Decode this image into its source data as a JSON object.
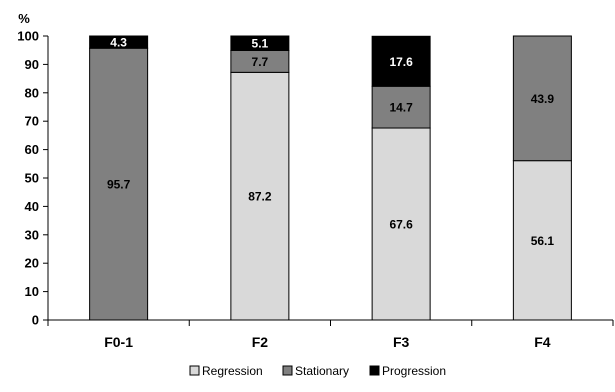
{
  "chart_data": {
    "type": "bar",
    "stacked": true,
    "y_unit": "%",
    "ylim": [
      0,
      100
    ],
    "yticks": [
      0,
      10,
      20,
      30,
      40,
      50,
      60,
      70,
      80,
      90,
      100
    ],
    "grid": false,
    "legend_position": "bottom",
    "categories": [
      "F0-1",
      "F2",
      "F3",
      "F4"
    ],
    "series": [
      {
        "name": "Regression",
        "color": "#d9d9d9",
        "label_color": "#000000",
        "values": [
          0,
          87.2,
          67.6,
          56.1
        ],
        "labels": [
          "",
          "87.2",
          "67.6",
          "56.1"
        ]
      },
      {
        "name": "Stationary",
        "color": "#808080",
        "label_color": "#000000",
        "values": [
          95.7,
          7.7,
          14.7,
          43.9
        ],
        "labels": [
          "95.7",
          "7.7",
          "14.7",
          "43.9"
        ]
      },
      {
        "name": "Progression",
        "color": "#000000",
        "label_color": "#ffffff",
        "values": [
          4.3,
          5.1,
          17.6,
          0
        ],
        "labels": [
          "4.3",
          "5.1",
          "17.6",
          ""
        ]
      }
    ]
  }
}
